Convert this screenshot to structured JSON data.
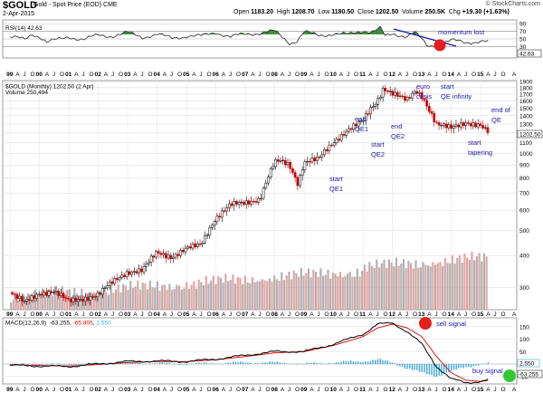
{
  "header": {
    "symbol": "$GOLD",
    "description": "Gold - Spot Price (EOD)",
    "exchange": "CME",
    "date": "2-Apr-2015",
    "open_label": "Open",
    "open": "1183.20",
    "high_label": "High",
    "high": "1208.70",
    "low_label": "Low",
    "low": "1180.50",
    "close_label": "Close",
    "close": "1202.50",
    "volume_label": "Volume",
    "volume": "250.5K",
    "chg_label": "Chg",
    "chg": "+19.30 (+1.63%)",
    "copyright": "© StockCharts.com"
  },
  "colors": {
    "up": "#000000",
    "down": "#cc0000",
    "annotation": "#1a1aa8",
    "rsi_fill_high": "#3c8a3c",
    "volume_bar": "#b0b0b0",
    "volume_bar_down": "#e4a3a3",
    "macd_line": "#000000",
    "signal_line": "#e00000",
    "histogram": "#3ea8d6",
    "sell_dot": "#e41e1e",
    "buy_dot": "#32c832"
  },
  "chart_data": [
    {
      "type": "line",
      "title": "RSI(14) 42.63",
      "indicator": "RSI(14)",
      "last_value": "42.63",
      "ylim": [
        0,
        100
      ],
      "yticks": [
        "90",
        "70",
        "50",
        "30"
      ],
      "levels": [
        70,
        30
      ],
      "x_year": [
        1999.0,
        1999.25,
        1999.5,
        1999.75,
        2000,
        2000.25,
        2000.5,
        2000.75,
        2001,
        2001.5,
        2002,
        2002.5,
        2003,
        2003.5,
        2004,
        2004.5,
        2005,
        2005.5,
        2006,
        2006.5,
        2007,
        2007.5,
        2008,
        2008.25,
        2008.5,
        2008.75,
        2009,
        2009.5,
        2010,
        2010.5,
        2011,
        2011.3,
        2011.6,
        2011.75,
        2012,
        2012.5,
        2012.75,
        2013,
        2013.2,
        2013.5,
        2014,
        2014.5,
        2015,
        2015.25
      ],
      "y": [
        55,
        52,
        48,
        63,
        57,
        42,
        46,
        50,
        56,
        48,
        60,
        58,
        66,
        55,
        62,
        52,
        58,
        57,
        68,
        55,
        63,
        66,
        70,
        55,
        40,
        45,
        68,
        59,
        64,
        61,
        72,
        69,
        78,
        56,
        63,
        58,
        67,
        48,
        30,
        36,
        46,
        40,
        45,
        42.63
      ],
      "annotations": [
        {
          "text": "momentum lost"
        }
      ]
    },
    {
      "type": "candlestick",
      "title": "$GOLD (Monthly) 1202.50 (2 Apr)",
      "series_name": "$GOLD (Monthly)",
      "last_value": "1202.50",
      "last_date": "2 Apr",
      "volume_label": "Volume 250,494",
      "y_scale": "log",
      "yticks": [
        "1900",
        "1800",
        "1700",
        "1600",
        "1500",
        "1400",
        "1300",
        "1200",
        "1100",
        "1000",
        "900",
        "800",
        "700",
        "600",
        "500",
        "400",
        "300"
      ],
      "x_year": [
        1999.0,
        1999.5,
        2000.0,
        2000.5,
        2001.0,
        2001.5,
        2002.0,
        2002.5,
        2003.0,
        2003.5,
        2004.0,
        2004.5,
        2005.0,
        2005.5,
        2006.0,
        2006.5,
        2007.0,
        2007.5,
        2008.0,
        2008.2,
        2008.5,
        2008.8,
        2009.0,
        2009.5,
        2010.0,
        2010.5,
        2011.0,
        2011.3,
        2011.5,
        2011.7,
        2012.0,
        2012.5,
        2012.8,
        2013.0,
        2013.3,
        2013.5,
        2014.0,
        2014.5,
        2015.0,
        2015.25
      ],
      "close": [
        287,
        262,
        285,
        290,
        265,
        272,
        282,
        315,
        345,
        350,
        410,
        395,
        425,
        440,
        560,
        630,
        640,
        665,
        920,
        930,
        900,
        760,
        925,
        950,
        1100,
        1240,
        1330,
        1500,
        1600,
        1800,
        1720,
        1600,
        1750,
        1680,
        1450,
        1300,
        1250,
        1320,
        1285,
        1202.5
      ],
      "annotations": [
        {
          "text": [
            "start",
            "QE1"
          ]
        },
        {
          "text": [
            "end",
            "QE1"
          ]
        },
        {
          "text": [
            "start",
            "QE2"
          ]
        },
        {
          "text": [
            "end",
            "QE2"
          ]
        },
        {
          "text": [
            "euro",
            "crisis"
          ]
        },
        {
          "text": [
            "start",
            "QE infinity"
          ]
        },
        {
          "text": [
            "start",
            "tapering"
          ]
        },
        {
          "text": [
            "end of",
            "QE"
          ]
        }
      ]
    },
    {
      "type": "line",
      "title": "MACD(12,26,9) -63.255, -65.805, 2.550",
      "macd_label": "MACD(12,26,9)",
      "macd_value": "-63.255",
      "signal_value": "-65.805",
      "histogram_value": "2.550",
      "yticks": [
        "150",
        "100",
        "50",
        "0",
        "-50"
      ],
      "tag_values": [
        "2.550",
        "-63.255"
      ],
      "x_year": [
        1999,
        2000,
        2001,
        2002,
        2003,
        2004,
        2005,
        2006,
        2007,
        2008,
        2009,
        2010,
        2011,
        2011.5,
        2012,
        2012.5,
        2013,
        2013.5,
        2014,
        2014.5,
        2015,
        2015.25
      ],
      "series": [
        {
          "name": "MACD",
          "values": [
            -5,
            -8,
            -10,
            0,
            10,
            12,
            10,
            20,
            35,
            50,
            50,
            80,
            120,
            160,
            165,
            130,
            80,
            -10,
            -60,
            -75,
            -70,
            -63.255
          ]
        },
        {
          "name": "Signal",
          "values": [
            -3,
            -6,
            -8,
            -2,
            6,
            10,
            10,
            17,
            30,
            45,
            50,
            75,
            110,
            145,
            160,
            145,
            110,
            30,
            -35,
            -65,
            -70,
            -65.805
          ]
        }
      ],
      "annotations": [
        {
          "text": "sell signal"
        },
        {
          "text": "buy signal"
        }
      ]
    }
  ],
  "x_axis": {
    "year_labels": [
      "99",
      "00",
      "01",
      "02",
      "03",
      "04",
      "05",
      "06",
      "07",
      "08",
      "09",
      "10",
      "11",
      "12",
      "13",
      "14",
      "15"
    ],
    "month_labels": [
      "A",
      "J",
      "O"
    ],
    "final_label": "A"
  }
}
